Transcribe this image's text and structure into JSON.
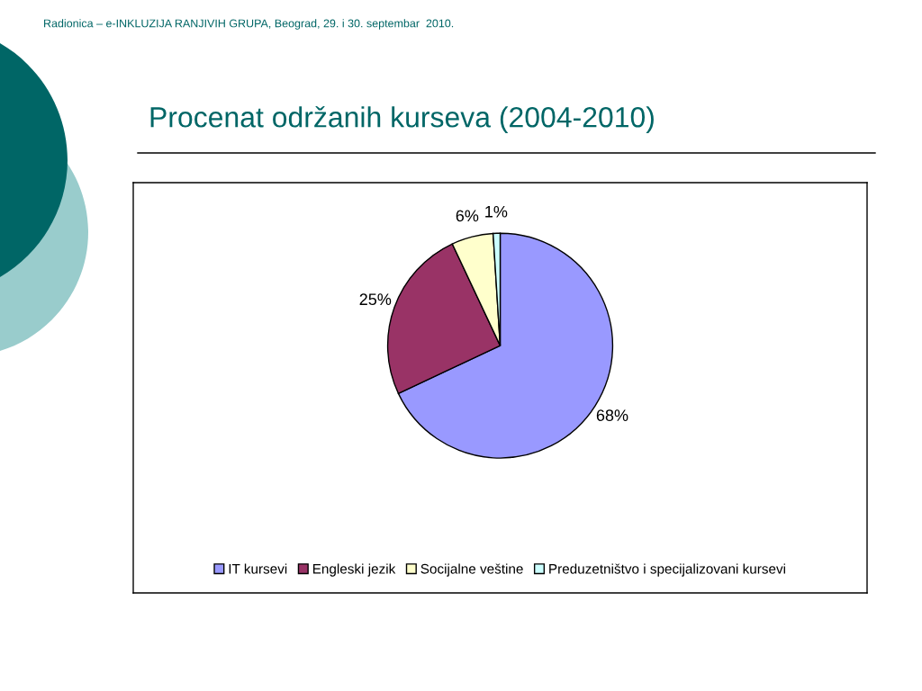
{
  "chart_data": {
    "type": "pie",
    "title": "Procenat održanih kurseva (2004-2010)",
    "annotations": [
      "Radionica – e-INKLUZIJA RANJIVIH GRUPA, Beograd, 29. i 30. septembar  2010."
    ],
    "categories": [
      "IT kursevi",
      "Engleski jezik",
      "Socijalne veštine",
      "Preduzetništvo i specijalizovani kursevi"
    ],
    "values": [
      68,
      25,
      6,
      1
    ],
    "colors": [
      "#9999ff",
      "#993366",
      "#ffffcc",
      "#ccffff"
    ],
    "value_labels": [
      "68%",
      "25%",
      "6%",
      "1%"
    ],
    "legend": "bottom"
  }
}
